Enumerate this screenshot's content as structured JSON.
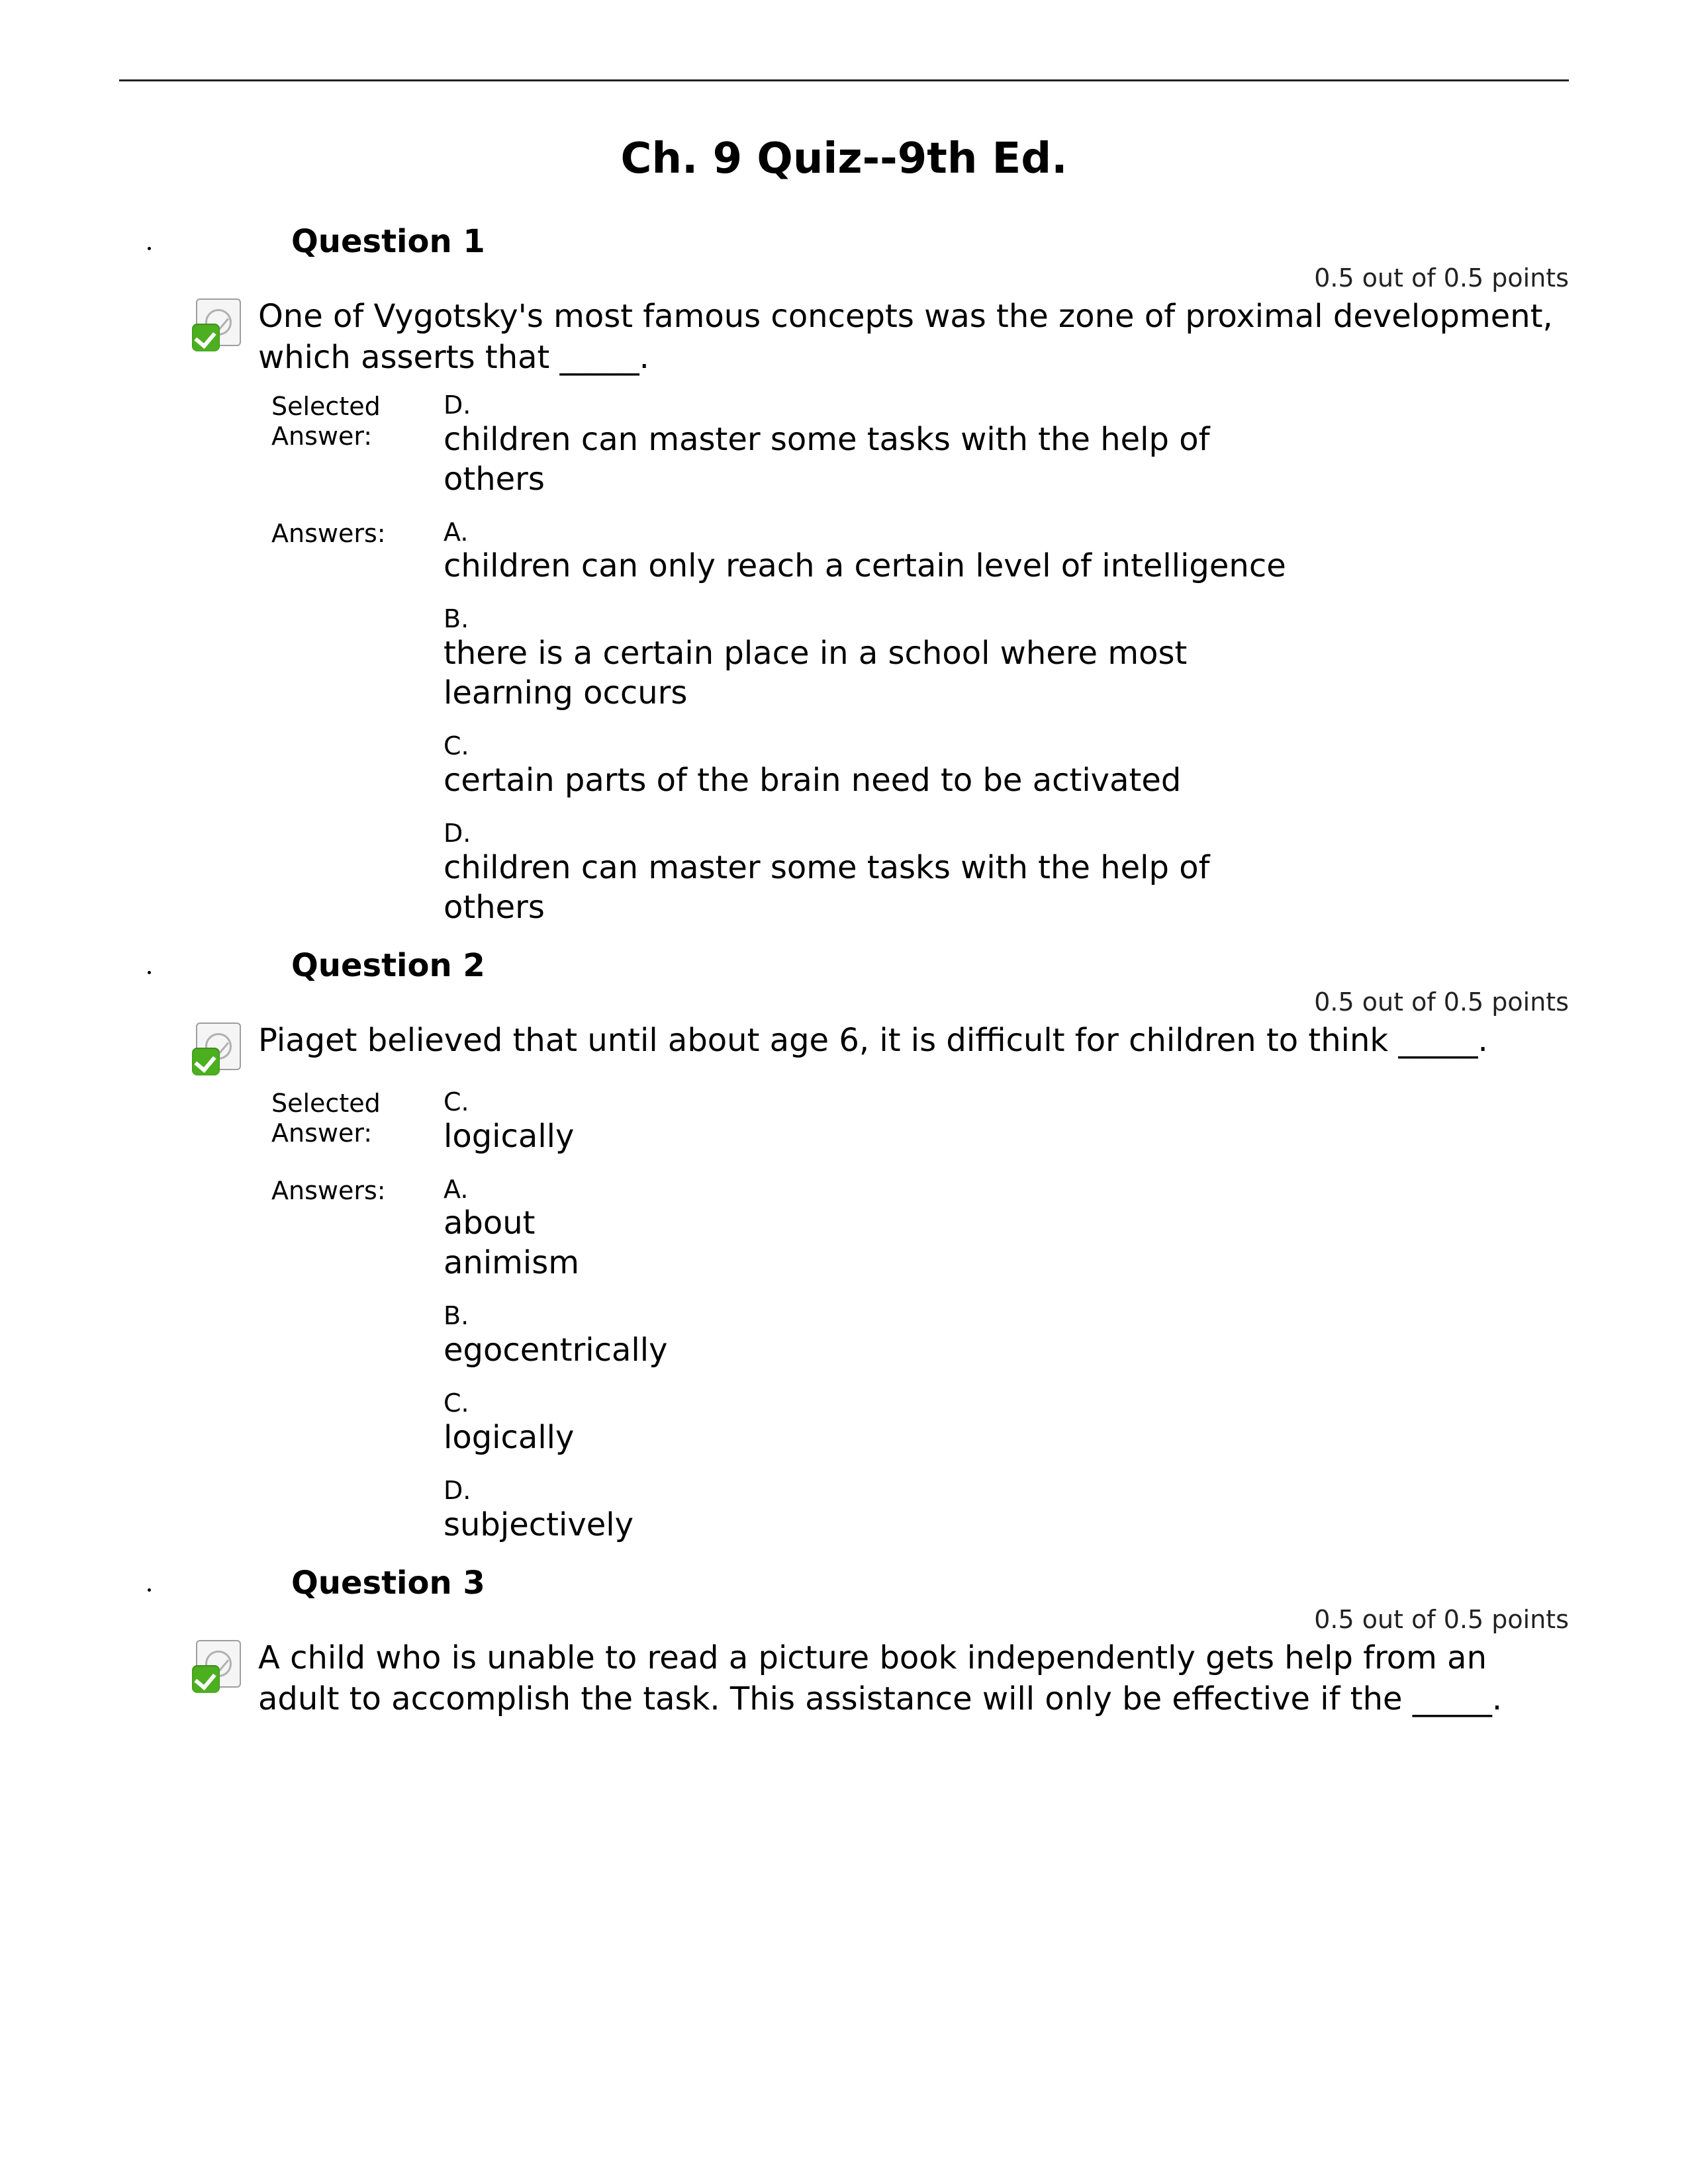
{
  "title": "Ch. 9 Quiz--9th Ed.",
  "labels": {
    "selected_answer": "Selected Answer:",
    "answers": "Answers:"
  },
  "questions": [
    {
      "heading": "Question 1",
      "points": "0.5 out of 0.5 points",
      "correct": true,
      "stem": "One of Vygotsky's most famous concepts was the zone of proximal development, which asserts that _____.",
      "selected": {
        "letter": "D.",
        "text": "children can master some tasks with the help of others"
      },
      "narrow": false,
      "choices": [
        {
          "letter": "A.",
          "text": "children can only reach a certain level of intelligence"
        },
        {
          "letter": "B.",
          "text": "there is a certain place in a school where most learning occurs"
        },
        {
          "letter": "C.",
          "text": "certain parts of the brain need to be activated"
        },
        {
          "letter": "D.",
          "text": "children can master some tasks with the help of others"
        }
      ]
    },
    {
      "heading": "Question 2",
      "points": "0.5 out of 0.5 points",
      "correct": true,
      "stem": "Piaget believed that until about age 6, it is difficult for children to think _____.",
      "selected": {
        "letter": "C.",
        "text": "logically"
      },
      "narrow": true,
      "choices": [
        {
          "letter": "A.",
          "text": "about animism"
        },
        {
          "letter": "B.",
          "text": "egocentrically"
        },
        {
          "letter": "C.",
          "text": "logically"
        },
        {
          "letter": "D.",
          "text": "subjectively"
        }
      ]
    },
    {
      "heading": "Question 3",
      "points": "0.5 out of 0.5 points",
      "correct": true,
      "stem": "A child who is unable to read a picture book independently gets help from an adult to accomplish the task. This assistance will only be effective if the _____.",
      "selected": null,
      "narrow": false,
      "choices": []
    }
  ]
}
